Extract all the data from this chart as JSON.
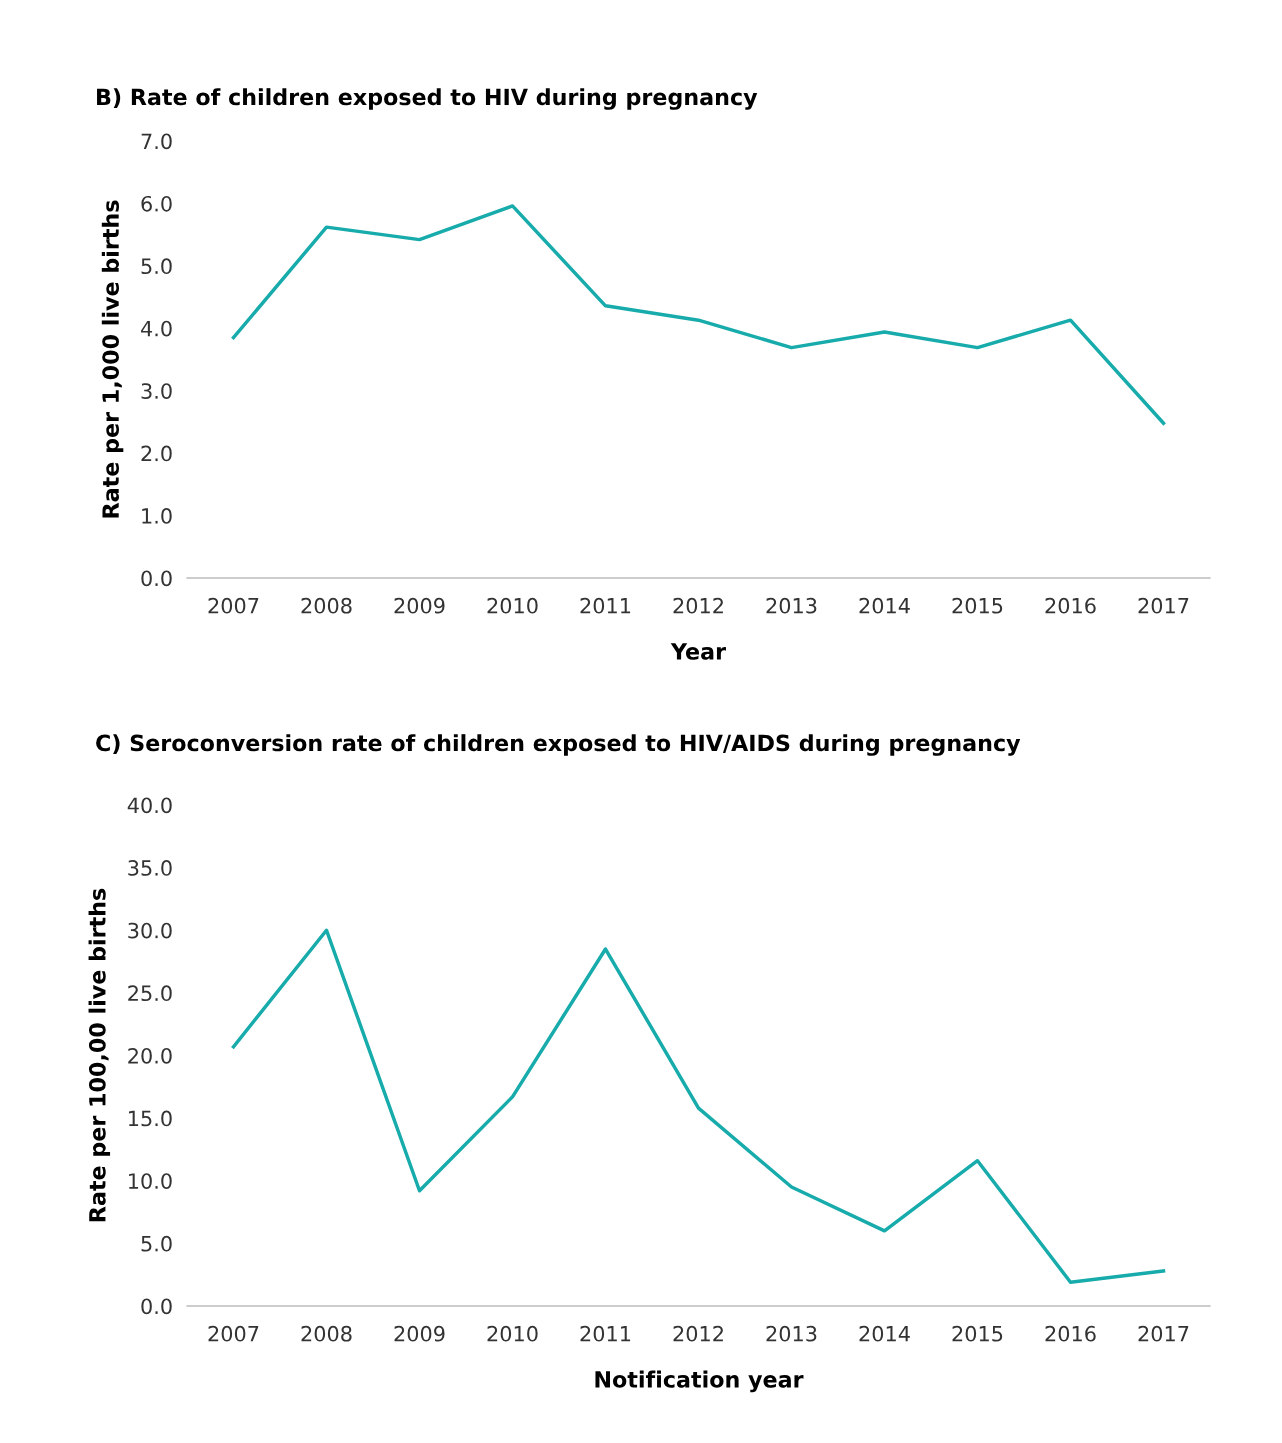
{
  "chart_data": [
    {
      "type": "line",
      "title": "B) Rate of children exposed to HIV during pregnancy",
      "xlabel": "Year",
      "ylabel": "Rate per 1,000 live births",
      "categories": [
        "2007",
        "2008",
        "2009",
        "2010",
        "2011",
        "2012",
        "2013",
        "2014",
        "2015",
        "2016",
        "2017"
      ],
      "series": [
        {
          "color": "#17abab",
          "values": [
            3.85,
            5.62,
            5.42,
            5.96,
            4.36,
            4.13,
            3.69,
            3.94,
            3.69,
            4.13,
            2.48
          ]
        }
      ],
      "ylim": [
        0,
        7
      ],
      "yticks": [
        {
          "value": 0,
          "label": "0.0"
        },
        {
          "value": 1,
          "label": "1.0"
        },
        {
          "value": 2,
          "label": "2.0"
        },
        {
          "value": 3,
          "label": "3.0"
        },
        {
          "value": 4,
          "label": "4.0"
        },
        {
          "value": 5,
          "label": "5.0"
        },
        {
          "value": 6,
          "label": "6.0"
        },
        {
          "value": 7,
          "label": "7.0"
        }
      ],
      "grid": false,
      "legend": false
    },
    {
      "type": "line",
      "title": "C) Seroconversion rate of children exposed to HIV/AIDS during pregnancy",
      "xlabel": "Notification year",
      "ylabel": "Rate per 100,00 live births",
      "categories": [
        "2007",
        "2008",
        "2009",
        "2010",
        "2011",
        "2012",
        "2013",
        "2014",
        "2015",
        "2016",
        "2017"
      ],
      "series": [
        {
          "color": "#17abab",
          "values": [
            20.7,
            30.0,
            9.2,
            16.7,
            28.5,
            15.8,
            9.5,
            6.0,
            11.6,
            1.9,
            2.8
          ]
        }
      ],
      "ylim": [
        0,
        40
      ],
      "yticks": [
        {
          "value": 0,
          "label": "0.0"
        },
        {
          "value": 5,
          "label": "5.0"
        },
        {
          "value": 10,
          "label": "10.0"
        },
        {
          "value": 15,
          "label": "15.0"
        },
        {
          "value": 20,
          "label": "20.0"
        },
        {
          "value": 25,
          "label": "25.0"
        },
        {
          "value": 30,
          "label": "30.0"
        },
        {
          "value": 35,
          "label": "35.0"
        },
        {
          "value": 40,
          "label": "40.0"
        }
      ],
      "grid": false,
      "legend": false
    }
  ]
}
